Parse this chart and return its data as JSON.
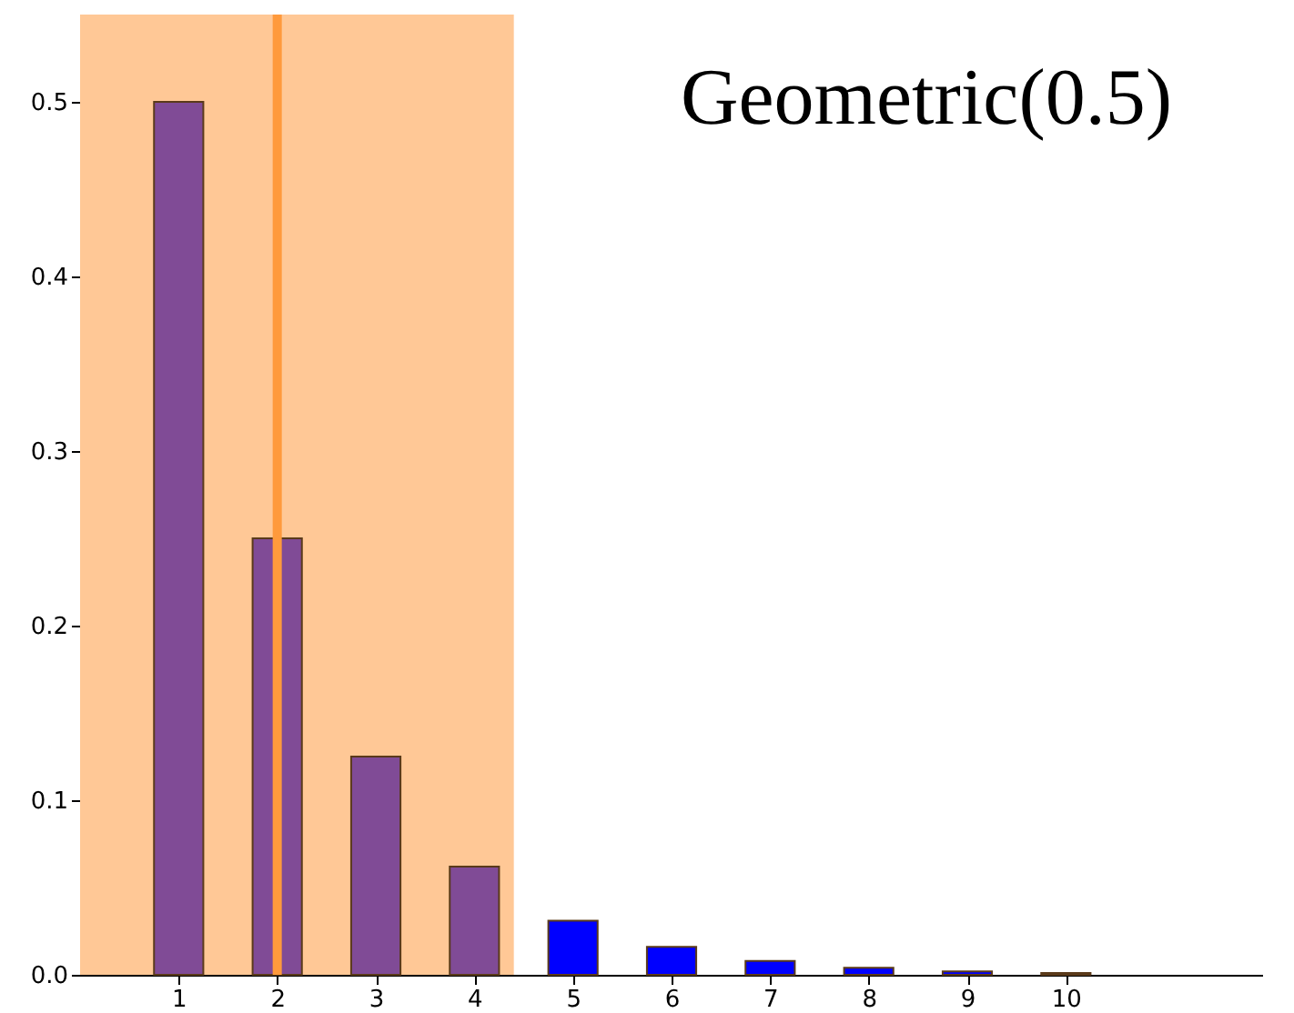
{
  "chart_data": {
    "type": "bar",
    "title": "Geometric(0.5)",
    "x": [
      1,
      2,
      3,
      4,
      5,
      6,
      7,
      8,
      9,
      10
    ],
    "values": [
      0.5,
      0.25,
      0.125,
      0.062,
      0.031,
      0.016,
      0.008,
      0.004,
      0.002,
      0.001
    ],
    "colors": [
      "#804b96",
      "#804b96",
      "#804b96",
      "#804b96",
      "#0000ff",
      "#0000ff",
      "#0000ff",
      "#0000ff",
      "#0000ff",
      "#0000ff"
    ],
    "xlim": [
      0,
      12
    ],
    "xticks": [
      1,
      2,
      3,
      4,
      5,
      6,
      7,
      8,
      9,
      10
    ],
    "ylim": [
      0,
      0.55
    ],
    "yticks": [
      {
        "value": 0,
        "label": "0.0"
      },
      {
        "value": 0.1,
        "label": "0.1"
      },
      {
        "value": 0.2,
        "label": "0.2"
      },
      {
        "value": 0.3,
        "label": "0.3"
      },
      {
        "value": 0.4,
        "label": "0.4"
      },
      {
        "value": 0.5,
        "label": "0.5"
      }
    ],
    "bands": [
      {
        "axis": "x",
        "from": 0,
        "to": 4.4,
        "color": "#ffc896"
      }
    ],
    "ref_lines": [
      {
        "axis": "x",
        "value": 2,
        "color": "#ff9a3c"
      }
    ],
    "grid": false
  }
}
